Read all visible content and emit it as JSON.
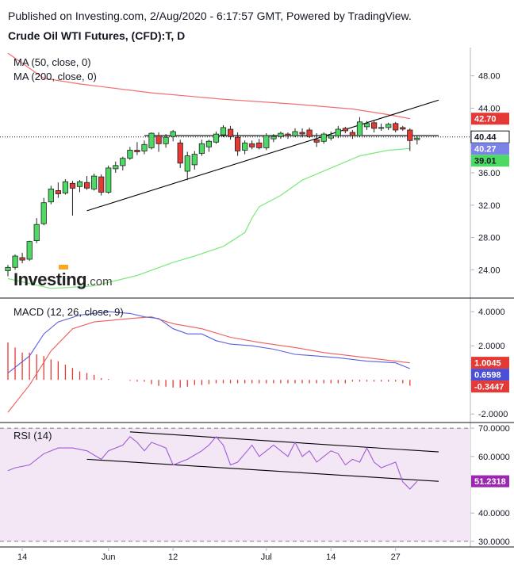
{
  "header": {
    "published": "Published on Investing.com, 2/Aug/2020 - 6:17:57 GMT, Powered by TradingView.",
    "instrument": "Crude Oil WTI Futures, (CFD):T, D"
  },
  "logo": {
    "text": "Investing",
    "suffix": ".com",
    "accent": "#f9a825"
  },
  "colors": {
    "up": "#4cd964",
    "down": "#e53935",
    "ma50": "#7bea7b",
    "ma200": "#f26d6d",
    "macd": "#5b5fde",
    "signal": "#ef5b5b",
    "hist": "#e53935",
    "rsi": "#a35bd9",
    "rsiBand": "#f3e6f5",
    "trend": "#000000"
  },
  "chart_data": [
    {
      "type": "candlestick",
      "title": "Crude Oil WTI Futures, (CFD):T, D",
      "legend": [
        "MA (50, close, 0)",
        "MA (200, close, 0)"
      ],
      "ylim": [
        20.5,
        51.5
      ],
      "yticks": [
        24,
        28,
        32,
        36,
        40,
        44,
        48
      ],
      "ytick_labels": [
        "24.00",
        "28.00",
        "32.00",
        "36.00",
        "40.00",
        "44.00",
        "48.00"
      ],
      "xtick_labels": [
        {
          "label": "14",
          "index": 2
        },
        {
          "label": "Jun",
          "index": 14
        },
        {
          "label": "12",
          "index": 23
        },
        {
          "label": "Jul",
          "index": 36
        },
        {
          "label": "14",
          "index": 45
        },
        {
          "label": "27",
          "index": 54
        }
      ],
      "candles": [
        {
          "o": 23.9,
          "h": 24.6,
          "l": 23.2,
          "c": 24.3
        },
        {
          "o": 24.3,
          "h": 25.9,
          "l": 24.0,
          "c": 25.7
        },
        {
          "o": 25.5,
          "h": 26.1,
          "l": 24.8,
          "c": 25.2
        },
        {
          "o": 25.3,
          "h": 27.6,
          "l": 25.1,
          "c": 27.5
        },
        {
          "o": 27.6,
          "h": 30.4,
          "l": 27.3,
          "c": 29.6
        },
        {
          "o": 29.7,
          "h": 32.9,
          "l": 29.5,
          "c": 32.3
        },
        {
          "o": 32.4,
          "h": 34.4,
          "l": 32.1,
          "c": 34.0
        },
        {
          "o": 33.8,
          "h": 34.8,
          "l": 32.9,
          "c": 33.4
        },
        {
          "o": 33.5,
          "h": 35.2,
          "l": 33.3,
          "c": 34.9
        },
        {
          "o": 34.7,
          "h": 35.0,
          "l": 30.7,
          "c": 34.1
        },
        {
          "o": 34.3,
          "h": 35.1,
          "l": 33.6,
          "c": 34.9
        },
        {
          "o": 34.8,
          "h": 35.6,
          "l": 33.9,
          "c": 34.1
        },
        {
          "o": 34.0,
          "h": 35.9,
          "l": 33.8,
          "c": 35.6
        },
        {
          "o": 35.5,
          "h": 35.8,
          "l": 33.2,
          "c": 33.6
        },
        {
          "o": 33.6,
          "h": 36.9,
          "l": 33.4,
          "c": 36.6
        },
        {
          "o": 36.5,
          "h": 37.4,
          "l": 36.0,
          "c": 36.9
        },
        {
          "o": 36.9,
          "h": 38.0,
          "l": 36.3,
          "c": 37.8
        },
        {
          "o": 37.8,
          "h": 39.2,
          "l": 37.6,
          "c": 38.8
        },
        {
          "o": 38.8,
          "h": 39.8,
          "l": 38.2,
          "c": 38.6
        },
        {
          "o": 38.7,
          "h": 40.0,
          "l": 38.3,
          "c": 39.5
        },
        {
          "o": 39.1,
          "h": 41.0,
          "l": 38.9,
          "c": 40.9
        },
        {
          "o": 40.6,
          "h": 41.0,
          "l": 38.6,
          "c": 39.6
        },
        {
          "o": 39.6,
          "h": 40.8,
          "l": 39.1,
          "c": 40.4
        },
        {
          "o": 40.5,
          "h": 41.3,
          "l": 39.9,
          "c": 41.1
        },
        {
          "o": 39.7,
          "h": 40.1,
          "l": 36.6,
          "c": 37.2
        },
        {
          "o": 36.2,
          "h": 38.6,
          "l": 35.1,
          "c": 38.1
        },
        {
          "o": 37.0,
          "h": 38.7,
          "l": 36.4,
          "c": 38.3
        },
        {
          "o": 38.4,
          "h": 40.1,
          "l": 38.1,
          "c": 39.6
        },
        {
          "o": 39.2,
          "h": 40.1,
          "l": 38.6,
          "c": 39.9
        },
        {
          "o": 39.8,
          "h": 41.1,
          "l": 39.6,
          "c": 40.8
        },
        {
          "o": 40.7,
          "h": 41.9,
          "l": 40.4,
          "c": 41.6
        },
        {
          "o": 41.4,
          "h": 41.8,
          "l": 40.1,
          "c": 40.5
        },
        {
          "o": 40.4,
          "h": 41.0,
          "l": 38.1,
          "c": 38.7
        },
        {
          "o": 38.8,
          "h": 40.0,
          "l": 38.3,
          "c": 39.7
        },
        {
          "o": 39.6,
          "h": 40.0,
          "l": 38.9,
          "c": 39.2
        },
        {
          "o": 39.7,
          "h": 40.2,
          "l": 38.9,
          "c": 39.1
        },
        {
          "o": 39.1,
          "h": 40.9,
          "l": 38.8,
          "c": 40.6
        },
        {
          "o": 40.2,
          "h": 40.8,
          "l": 39.8,
          "c": 40.5
        },
        {
          "o": 40.5,
          "h": 41.1,
          "l": 40.2,
          "c": 40.9
        },
        {
          "o": 40.8,
          "h": 41.0,
          "l": 40.2,
          "c": 40.6
        },
        {
          "o": 40.6,
          "h": 41.5,
          "l": 40.4,
          "c": 41.1
        },
        {
          "o": 41.0,
          "h": 41.5,
          "l": 40.4,
          "c": 40.8
        },
        {
          "o": 41.3,
          "h": 41.6,
          "l": 40.3,
          "c": 40.5
        },
        {
          "o": 40.1,
          "h": 40.9,
          "l": 39.2,
          "c": 39.8
        },
        {
          "o": 39.9,
          "h": 41.0,
          "l": 39.6,
          "c": 40.8
        },
        {
          "o": 40.3,
          "h": 41.1,
          "l": 40.0,
          "c": 40.6
        },
        {
          "o": 40.6,
          "h": 41.8,
          "l": 40.3,
          "c": 41.4
        },
        {
          "o": 41.5,
          "h": 41.7,
          "l": 40.9,
          "c": 41.2
        },
        {
          "o": 41.0,
          "h": 41.3,
          "l": 40.2,
          "c": 40.6
        },
        {
          "o": 40.6,
          "h": 42.9,
          "l": 40.4,
          "c": 42.3
        },
        {
          "o": 41.7,
          "h": 42.4,
          "l": 41.3,
          "c": 42.1
        },
        {
          "o": 42.2,
          "h": 42.5,
          "l": 41.0,
          "c": 41.5
        },
        {
          "o": 41.6,
          "h": 42.1,
          "l": 41.2,
          "c": 41.6
        },
        {
          "o": 41.6,
          "h": 42.2,
          "l": 41.3,
          "c": 42.0
        },
        {
          "o": 42.1,
          "h": 42.3,
          "l": 41.0,
          "c": 41.3
        },
        {
          "o": 41.6,
          "h": 41.8,
          "l": 41.2,
          "c": 41.4
        },
        {
          "o": 41.3,
          "h": 41.5,
          "l": 38.7,
          "c": 40.0
        },
        {
          "o": 40.1,
          "h": 40.6,
          "l": 39.5,
          "c": 40.3
        }
      ],
      "ma50": {
        "points": [
          [
            0,
            22.9
          ],
          [
            6,
            21.7
          ],
          [
            12,
            22.0
          ],
          [
            18,
            23.3
          ],
          [
            23,
            24.9
          ],
          [
            26,
            25.7
          ],
          [
            30,
            26.9
          ],
          [
            33,
            28.6
          ],
          [
            34,
            30.4
          ],
          [
            35,
            31.8
          ],
          [
            38,
            33.2
          ],
          [
            41,
            35.1
          ],
          [
            45,
            36.6
          ],
          [
            49,
            38.1
          ],
          [
            53,
            38.8
          ],
          [
            56,
            39.0
          ]
        ],
        "label": "39.01"
      },
      "ma200": {
        "points": [
          [
            0,
            50.8
          ],
          [
            5,
            47.7
          ],
          [
            10,
            47.0
          ],
          [
            20,
            45.9
          ],
          [
            30,
            45.1
          ],
          [
            40,
            44.5
          ],
          [
            48,
            43.9
          ],
          [
            53,
            43.2
          ],
          [
            56,
            42.7
          ]
        ],
        "label": "42.70"
      },
      "trendlines": [
        {
          "from": [
            11,
            31.3
          ],
          "to": [
            60,
            45.0
          ]
        },
        {
          "from": [
            19,
            40.6
          ],
          "to": [
            60,
            40.6
          ]
        }
      ],
      "price_line": 40.44,
      "badges": [
        {
          "value": 42.7,
          "label": "42.70",
          "kind": "ma200"
        },
        {
          "value": 40.44,
          "label": "40.44",
          "kind": "price"
        },
        {
          "value": 40.27,
          "label": "40.27",
          "kind": "last"
        },
        {
          "value": 39.01,
          "label": "39.01",
          "kind": "ma50"
        }
      ]
    },
    {
      "type": "line",
      "title": "MACD (12, 26, close, 9)",
      "ylim": [
        -2.5,
        4.8
      ],
      "yticks": [
        4.0,
        2.0,
        0.0,
        -2.0
      ],
      "ytick_labels": [
        "4.0000",
        "2.0000",
        "0.0000",
        "-2.0000"
      ],
      "series": [
        {
          "name": "MACD",
          "points": [
            [
              0,
              0.4
            ],
            [
              3,
              1.4
            ],
            [
              5,
              2.7
            ],
            [
              7,
              3.4
            ],
            [
              10,
              3.8
            ],
            [
              14,
              4.0
            ],
            [
              17,
              3.9
            ],
            [
              19,
              3.7
            ],
            [
              21,
              3.6
            ],
            [
              23,
              3.0
            ],
            [
              25,
              2.7
            ],
            [
              27,
              2.7
            ],
            [
              29,
              2.3
            ],
            [
              31,
              2.1
            ],
            [
              34,
              2.0
            ],
            [
              37,
              1.8
            ],
            [
              40,
              1.5
            ],
            [
              43,
              1.4
            ],
            [
              46,
              1.3
            ],
            [
              50,
              1.1
            ],
            [
              54,
              1.0
            ],
            [
              56,
              0.66
            ]
          ]
        },
        {
          "name": "Signal",
          "points": [
            [
              0,
              -1.9
            ],
            [
              3,
              -0.3
            ],
            [
              6,
              1.7
            ],
            [
              9,
              3.0
            ],
            [
              12,
              3.4
            ],
            [
              17,
              3.6
            ],
            [
              20,
              3.7
            ],
            [
              23,
              3.3
            ],
            [
              27,
              3.0
            ],
            [
              31,
              2.5
            ],
            [
              35,
              2.2
            ],
            [
              40,
              1.9
            ],
            [
              44,
              1.6
            ],
            [
              48,
              1.4
            ],
            [
              52,
              1.2
            ],
            [
              56,
              1.0
            ]
          ]
        }
      ],
      "histogram": [
        2.2,
        1.9,
        1.6,
        1.6,
        1.5,
        1.4,
        1.2,
        1.1,
        0.9,
        0.7,
        0.5,
        0.4,
        0.3,
        0.1,
        0.05,
        0.0,
        0.0,
        -0.05,
        -0.1,
        -0.1,
        -0.25,
        -0.35,
        -0.4,
        -0.45,
        -0.45,
        -0.4,
        -0.3,
        -0.3,
        -0.25,
        -0.2,
        -0.2,
        -0.2,
        -0.2,
        -0.2,
        -0.2,
        -0.2,
        -0.2,
        -0.2,
        -0.2,
        -0.2,
        -0.2,
        -0.2,
        -0.2,
        -0.2,
        -0.2,
        -0.2,
        -0.2,
        -0.2,
        -0.1,
        -0.1,
        -0.1,
        -0.1,
        -0.1,
        -0.1,
        -0.1,
        -0.2,
        -0.3447
      ],
      "badges": [
        {
          "value": 1.0045,
          "label": "1.0045",
          "kind": "signal"
        },
        {
          "value": 0.6598,
          "label": "0.6598",
          "kind": "macd"
        },
        {
          "value": -0.3447,
          "label": "-0.3447",
          "kind": "hist"
        }
      ]
    },
    {
      "type": "line",
      "title": "RSI (14)",
      "ylim": [
        28,
        72
      ],
      "yticks": [
        70,
        60,
        40,
        30
      ],
      "ytick_labels": [
        "70.0000",
        "60.0000",
        "40.0000",
        "30.0000"
      ],
      "band": [
        30,
        70
      ],
      "series": [
        {
          "name": "RSI",
          "points": [
            [
              0,
              55
            ],
            [
              1,
              56
            ],
            [
              3,
              57
            ],
            [
              5,
              61
            ],
            [
              7,
              63
            ],
            [
              9,
              63
            ],
            [
              11,
              62
            ],
            [
              13,
              59
            ],
            [
              14,
              62
            ],
            [
              16,
              64
            ],
            [
              17,
              67
            ],
            [
              18,
              65
            ],
            [
              19,
              62
            ],
            [
              20,
              65
            ],
            [
              21,
              64
            ],
            [
              22,
              63
            ],
            [
              23,
              57
            ],
            [
              25,
              59
            ],
            [
              27,
              62
            ],
            [
              28,
              64
            ],
            [
              29,
              67
            ],
            [
              30,
              64
            ],
            [
              31,
              57
            ],
            [
              32,
              58
            ],
            [
              33,
              61
            ],
            [
              34,
              64
            ],
            [
              35,
              60
            ],
            [
              36,
              62
            ],
            [
              37,
              64
            ],
            [
              38,
              62
            ],
            [
              39,
              60
            ],
            [
              40,
              65
            ],
            [
              41,
              60
            ],
            [
              42,
              62
            ],
            [
              43,
              58
            ],
            [
              44,
              60
            ],
            [
              45,
              62
            ],
            [
              46,
              61
            ],
            [
              47,
              57
            ],
            [
              48,
              59
            ],
            [
              49,
              58
            ],
            [
              50,
              63
            ],
            [
              51,
              58
            ],
            [
              52,
              56
            ],
            [
              53,
              57
            ],
            [
              54,
              58
            ],
            [
              55,
              51
            ],
            [
              56,
              48.5
            ],
            [
              57,
              51.23
            ]
          ]
        }
      ],
      "trendlines": [
        {
          "from": [
            17,
            68.7
          ],
          "to": [
            60,
            61.6
          ]
        },
        {
          "from": [
            11,
            59.0
          ],
          "to": [
            60,
            51.2
          ]
        }
      ],
      "badges": [
        {
          "value": 51.2318,
          "label": "51.2318",
          "kind": "rsi"
        }
      ]
    }
  ]
}
